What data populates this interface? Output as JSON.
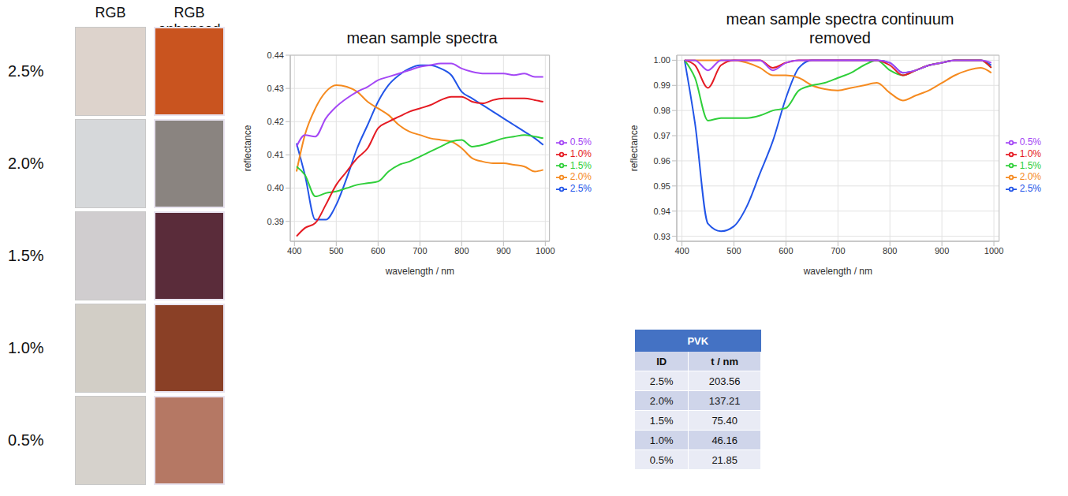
{
  "image_panels": {
    "headers": [
      "RGB",
      "RGB enhanced"
    ],
    "row_labels": [
      "2.5%",
      "2.0%",
      "1.5%",
      "1.0%",
      "0.5%"
    ]
  },
  "chart_data": [
    {
      "type": "line",
      "title": "mean sample spectra",
      "x_label": "wavelength / nm",
      "y_label": "reflectance",
      "x": [
        405,
        425,
        450,
        475,
        500,
        525,
        550,
        575,
        600,
        625,
        650,
        675,
        700,
        725,
        750,
        775,
        800,
        825,
        850,
        875,
        900,
        925,
        950,
        975,
        995
      ],
      "series": [
        {
          "name": "2.5%",
          "color": "#2255e8",
          "values": [
            0.4135,
            0.404,
            0.3905,
            0.3905,
            0.395,
            0.403,
            0.412,
            0.419,
            0.426,
            0.431,
            0.434,
            0.436,
            0.437,
            0.437,
            0.436,
            0.434,
            0.429,
            0.427,
            0.425,
            0.423,
            0.421,
            0.419,
            0.417,
            0.415,
            0.413
          ]
        },
        {
          "name": "2.0%",
          "color": "#f58a1f",
          "values": [
            0.405,
            0.416,
            0.424,
            0.429,
            0.431,
            0.4305,
            0.429,
            0.426,
            0.424,
            0.422,
            0.419,
            0.417,
            0.416,
            0.415,
            0.4145,
            0.414,
            0.412,
            0.409,
            0.408,
            0.4075,
            0.4075,
            0.407,
            0.4065,
            0.405,
            0.4055
          ]
        },
        {
          "name": "1.5%",
          "color": "#2fcf3a",
          "values": [
            0.4065,
            0.404,
            0.3975,
            0.3985,
            0.399,
            0.4,
            0.401,
            0.4015,
            0.402,
            0.405,
            0.407,
            0.408,
            0.4095,
            0.411,
            0.4125,
            0.414,
            0.4145,
            0.4125,
            0.413,
            0.414,
            0.415,
            0.4155,
            0.416,
            0.4155,
            0.415
          ]
        },
        {
          "name": "1.0%",
          "color": "#e51b23",
          "values": [
            0.3855,
            0.388,
            0.3895,
            0.395,
            0.401,
            0.405,
            0.409,
            0.412,
            0.418,
            0.42,
            0.4215,
            0.423,
            0.424,
            0.425,
            0.4265,
            0.4275,
            0.4275,
            0.426,
            0.4255,
            0.4265,
            0.427,
            0.427,
            0.427,
            0.4265,
            0.426
          ]
        },
        {
          "name": "0.5%",
          "color": "#a447f5",
          "values": [
            0.4125,
            0.416,
            0.4155,
            0.421,
            0.4245,
            0.427,
            0.429,
            0.4305,
            0.4325,
            0.4335,
            0.4345,
            0.4355,
            0.4365,
            0.437,
            0.4375,
            0.4375,
            0.436,
            0.435,
            0.4345,
            0.4345,
            0.4345,
            0.434,
            0.4345,
            0.4335,
            0.4335
          ]
        }
      ],
      "xlim": [
        390,
        1010
      ],
      "xticks": [
        400,
        500,
        600,
        700,
        800,
        900,
        1000
      ],
      "ylim": [
        0.384,
        0.44
      ],
      "yticks": [
        0.39,
        {
          "value": 0.4,
          "label": "0.40"
        },
        0.41,
        0.42,
        0.43,
        0.44
      ],
      "grid": true,
      "legend": "right"
    },
    {
      "type": "line",
      "title": "mean sample spectra continuum removed",
      "x_label": "wavelength / nm",
      "y_label": "reflectance",
      "x": [
        405,
        425,
        450,
        475,
        500,
        525,
        550,
        575,
        600,
        625,
        650,
        675,
        700,
        725,
        750,
        775,
        800,
        825,
        850,
        875,
        900,
        925,
        950,
        975,
        995
      ],
      "series": [
        {
          "name": "2.5%",
          "color": "#2255e8",
          "values": [
            1.0,
            0.975,
            0.935,
            0.932,
            0.934,
            0.942,
            0.955,
            0.968,
            0.985,
            0.997,
            1.0,
            1.0,
            1.0,
            1.0,
            1.0,
            1.0,
            0.999,
            0.995,
            0.996,
            0.998,
            0.999,
            1.0,
            1.0,
            1.0,
            0.998
          ]
        },
        {
          "name": "2.0%",
          "color": "#f58a1f",
          "values": [
            1.0,
            1.0,
            1.0,
            1.0,
            1.0,
            0.999,
            0.997,
            0.994,
            0.994,
            0.993,
            0.99,
            0.9885,
            0.988,
            0.989,
            0.99,
            0.991,
            0.987,
            0.984,
            0.986,
            0.988,
            0.991,
            0.994,
            0.996,
            0.997,
            0.995
          ]
        },
        {
          "name": "1.5%",
          "color": "#2fcf3a",
          "values": [
            1.0,
            0.993,
            0.976,
            0.977,
            0.977,
            0.977,
            0.978,
            0.98,
            0.981,
            0.988,
            0.99,
            0.991,
            0.993,
            0.995,
            0.998,
            1.0,
            0.996,
            0.994,
            0.996,
            0.998,
            0.999,
            1.0,
            1.0,
            1.0,
            0.997
          ]
        },
        {
          "name": "1.0%",
          "color": "#e51b23",
          "values": [
            1.0,
            0.998,
            0.989,
            0.998,
            1.0,
            1.0,
            1.0,
            0.997,
            0.999,
            1.0,
            1.0,
            1.0,
            1.0,
            1.0,
            1.0,
            1.0,
            0.998,
            0.994,
            0.996,
            0.998,
            0.999,
            1.0,
            1.0,
            1.0,
            0.997
          ]
        },
        {
          "name": "0.5%",
          "color": "#a447f5",
          "values": [
            1.0,
            1.0,
            0.996,
            1.0,
            1.0,
            1.0,
            1.0,
            0.996,
            0.999,
            1.0,
            1.0,
            1.0,
            1.0,
            1.0,
            1.0,
            1.0,
            0.999,
            0.995,
            0.996,
            0.998,
            0.999,
            1.0,
            1.0,
            1.0,
            0.999
          ]
        }
      ],
      "xlim": [
        390,
        1010
      ],
      "xticks": [
        400,
        500,
        600,
        700,
        800,
        900,
        1000
      ],
      "ylim": [
        0.928,
        1.002
      ],
      "yticks": [
        0.93,
        0.94,
        0.95,
        0.96,
        0.97,
        0.98,
        0.99,
        {
          "value": 1,
          "label": "1.00"
        }
      ],
      "grid": true,
      "legend": "right"
    }
  ],
  "table": {
    "title": "PVK",
    "columns": [
      "ID",
      "t / nm"
    ],
    "rows": [
      [
        "2.5%",
        "203.56"
      ],
      [
        "2.0%",
        "137.21"
      ],
      [
        "1.5%",
        "75.40"
      ],
      [
        "1.0%",
        "46.16"
      ],
      [
        "0.5%",
        "21.85"
      ]
    ]
  }
}
